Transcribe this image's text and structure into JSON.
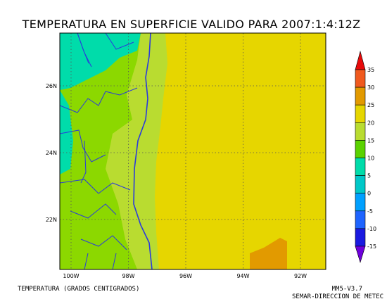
{
  "title": "TEMPERATURA EN SUPERFICIE VALIDO PARA 2007:1:4:12Z",
  "lon_labels": [
    "100W",
    "98W",
    "96W",
    "94W",
    "92W"
  ],
  "lat_labels": [
    "26N",
    "24N",
    "22N"
  ],
  "colorbar": {
    "labels": [
      "35",
      "30",
      "25",
      "20",
      "15",
      "10",
      "5",
      "0",
      "-5",
      "-10",
      "-15"
    ],
    "colors": [
      "#e80a0a",
      "#f05a1e",
      "#e29a00",
      "#e6d600",
      "#b9dc30",
      "#5ad200",
      "#00dcaa",
      "#00c8c8",
      "#00a0ff",
      "#1e64ff",
      "#1a1ae0",
      "#6e00dc"
    ]
  },
  "footer": {
    "left": "TEMPERATURA (GRADOS CENTIGRADOS)",
    "model": "MM5-V3.7",
    "source": "SEMAR-DIRECCION DE METEC"
  }
}
